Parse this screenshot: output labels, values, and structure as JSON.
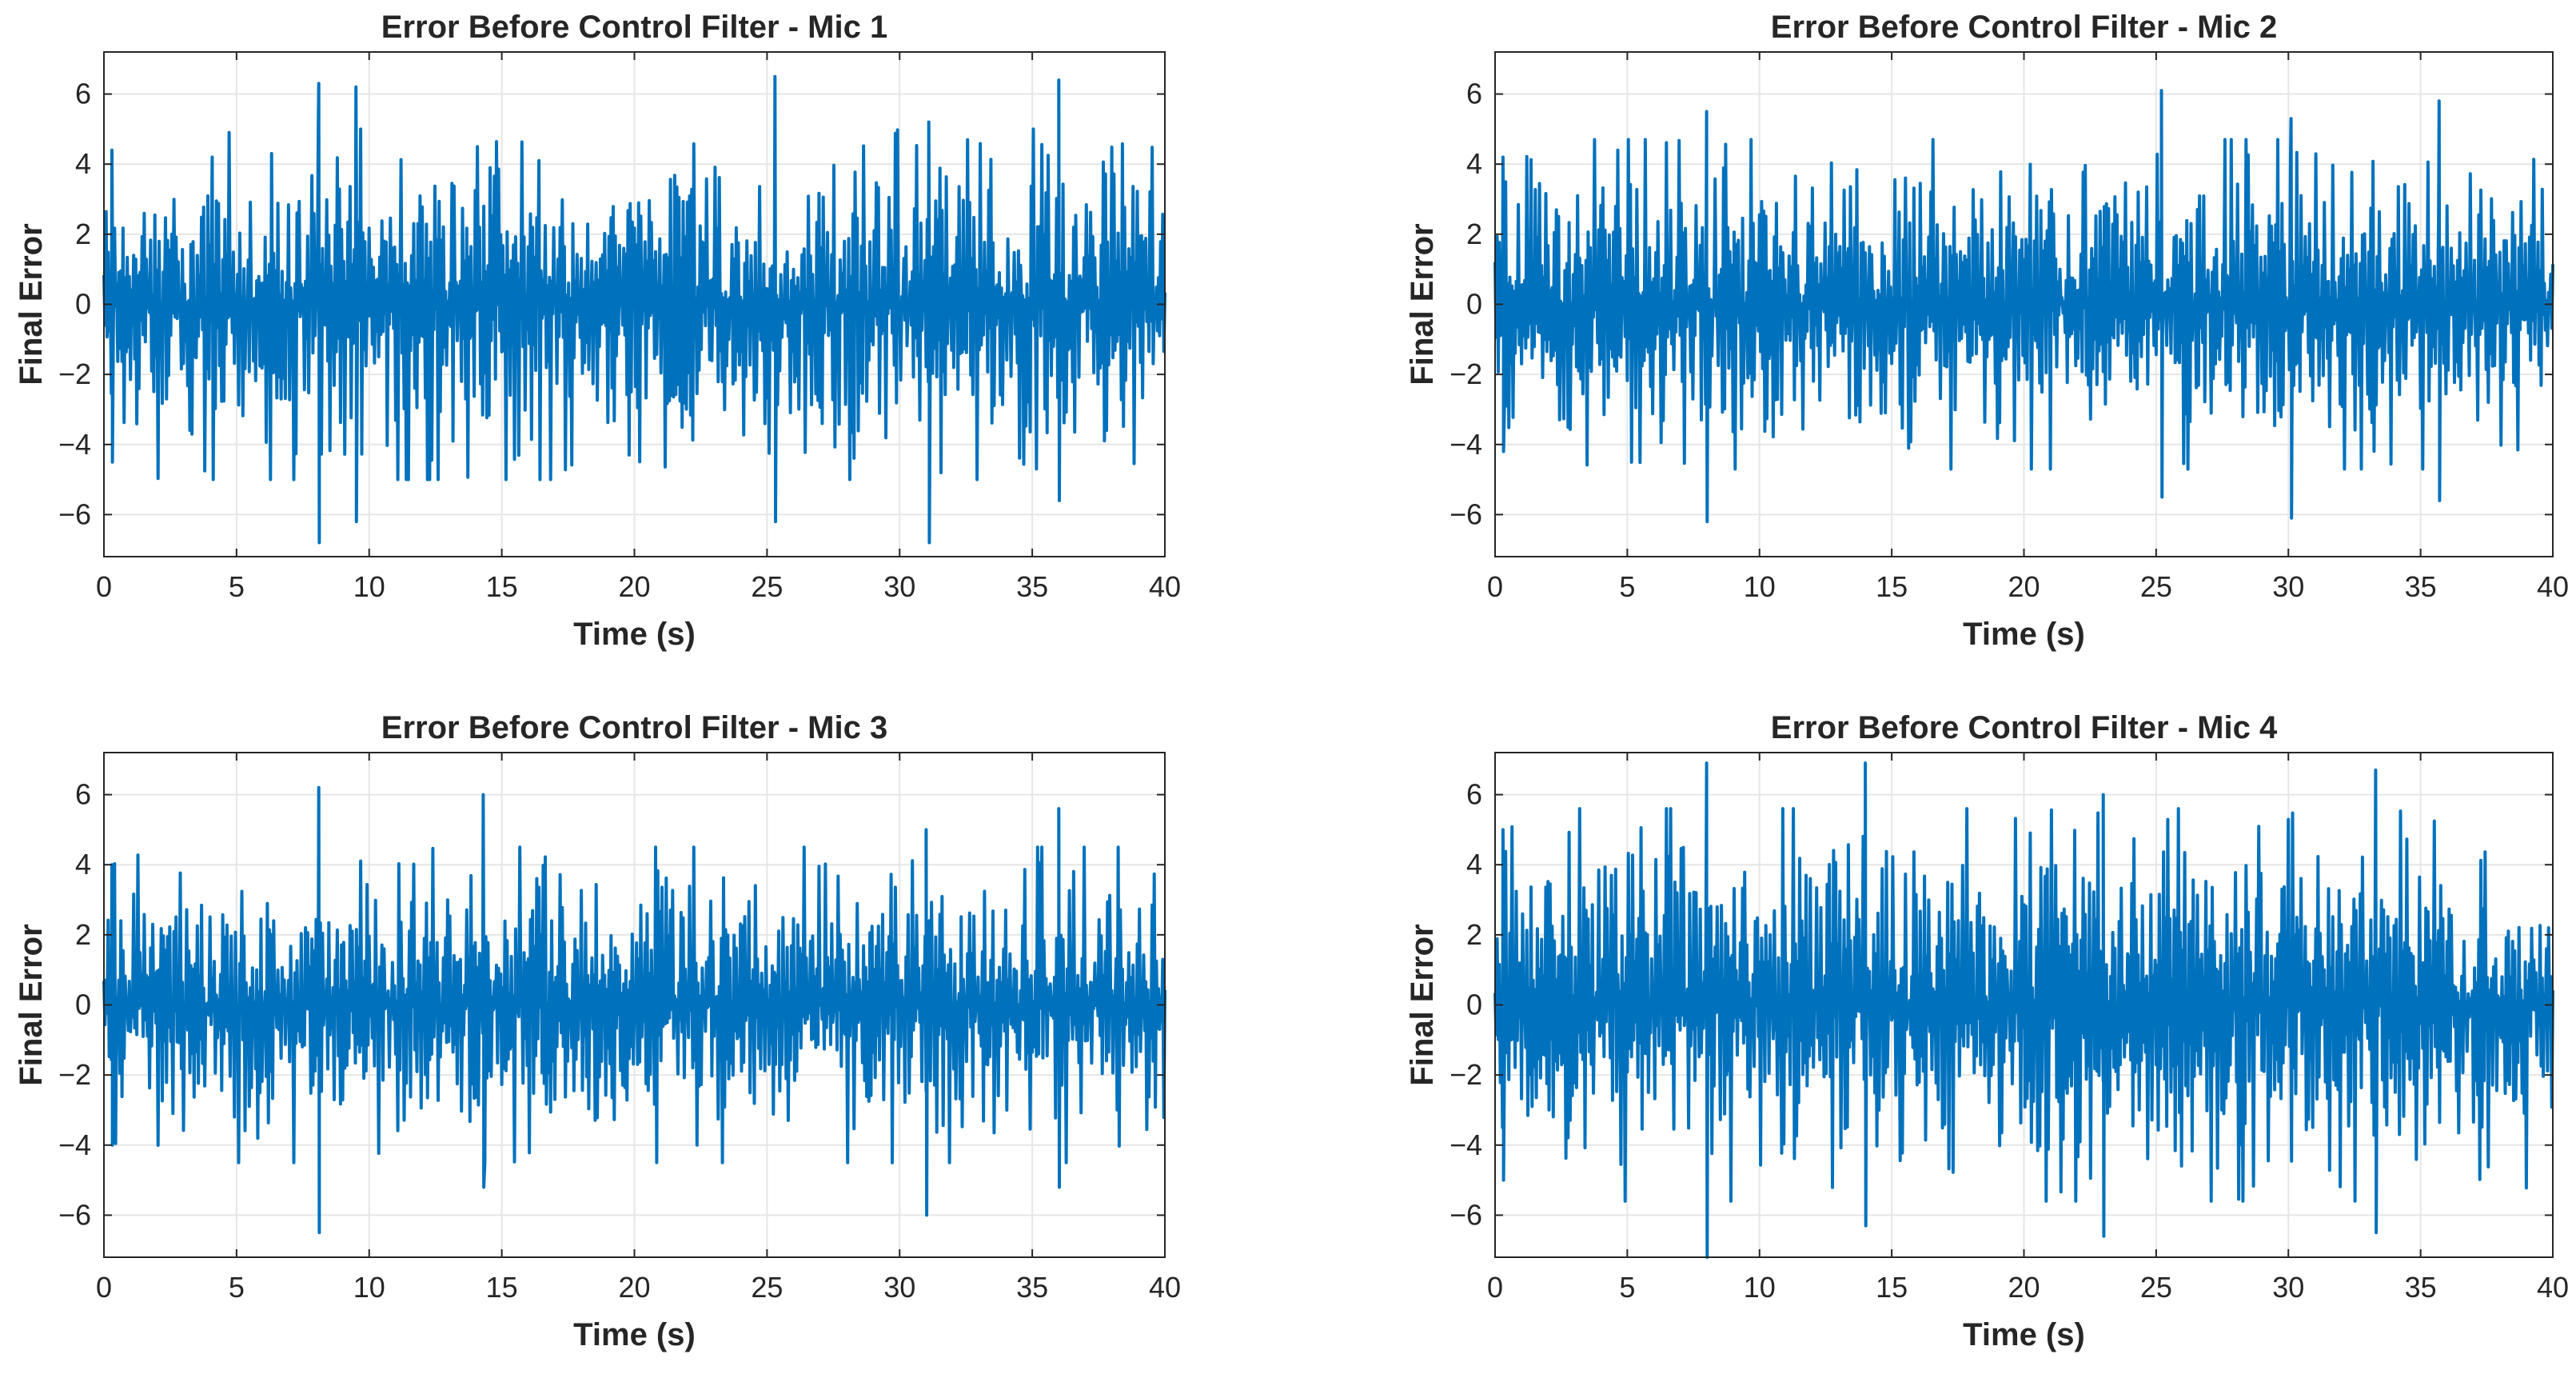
{
  "figure": {
    "background": "#ffffff",
    "line_color": "#0072bd",
    "grid_color": "#e6e6e6",
    "axes_color": "#262626"
  },
  "chart_data": [
    {
      "type": "line",
      "title": "Error Before Control Filter - Mic 1",
      "xlabel": "Time (s)",
      "ylabel": "Final Error",
      "xlim": [
        0,
        40
      ],
      "ylim": [
        -7.2,
        7.2
      ],
      "xticks": [
        0,
        5,
        10,
        15,
        20,
        25,
        30,
        35,
        40
      ],
      "yticks": [
        -6,
        -4,
        -2,
        0,
        2,
        4,
        6
      ],
      "grid": true,
      "series": [
        {
          "color": "#0072bd",
          "signal": "noise",
          "sample_interval_s": 0.04,
          "envelope": [
            {
              "x": 0,
              "lo": -3.2,
              "hi": 3.0
            },
            {
              "x": 0.3,
              "lo": -4.5,
              "hi": 4.4
            },
            {
              "x": 8.1,
              "lo": -6.8,
              "hi": 6.3
            },
            {
              "x": 9.5,
              "lo": -6.2,
              "hi": 6.2
            },
            {
              "x": 25.3,
              "lo": -6.2,
              "hi": 6.5
            },
            {
              "x": 31.1,
              "lo": -6.8,
              "hi": 5.2
            },
            {
              "x": 36.0,
              "lo": -5.6,
              "hi": 6.4
            },
            {
              "x": 40,
              "lo": -4.5,
              "hi": 4.3
            }
          ],
          "typical_range": [
            -5.0,
            5.0
          ]
        }
      ]
    },
    {
      "type": "line",
      "title": "Error Before Control Filter - Mic 2",
      "xlabel": "Time (s)",
      "ylabel": "Final Error",
      "xlim": [
        0,
        40
      ],
      "ylim": [
        -7.2,
        7.2
      ],
      "xticks": [
        0,
        5,
        10,
        15,
        20,
        25,
        30,
        35,
        40
      ],
      "yticks": [
        -6,
        -4,
        -2,
        0,
        2,
        4,
        6
      ],
      "grid": true,
      "series": [
        {
          "color": "#0072bd",
          "signal": "noise",
          "sample_interval_s": 0.04,
          "envelope": [
            {
              "x": 0,
              "lo": -3.0,
              "hi": 3.0
            },
            {
              "x": 0.3,
              "lo": -4.2,
              "hi": 4.2
            },
            {
              "x": 8.0,
              "lo": -6.2,
              "hi": 5.5
            },
            {
              "x": 25.2,
              "lo": -5.5,
              "hi": 6.1
            },
            {
              "x": 30.1,
              "lo": -6.1,
              "hi": 5.3
            },
            {
              "x": 35.7,
              "lo": -5.6,
              "hi": 5.8
            },
            {
              "x": 40,
              "lo": -4.3,
              "hi": 3.8
            }
          ],
          "typical_range": [
            -4.7,
            4.7
          ]
        }
      ]
    },
    {
      "type": "line",
      "title": "Error Before Control Filter - Mic 3",
      "xlabel": "Time (s)",
      "ylabel": "Final Error",
      "xlim": [
        0,
        40
      ],
      "ylim": [
        -7.2,
        7.2
      ],
      "xticks": [
        0,
        5,
        10,
        15,
        20,
        25,
        30,
        35,
        40
      ],
      "yticks": [
        -6,
        -4,
        -2,
        0,
        2,
        4,
        6
      ],
      "grid": true,
      "series": [
        {
          "color": "#0072bd",
          "signal": "noise",
          "sample_interval_s": 0.04,
          "envelope": [
            {
              "x": 0,
              "lo": -3.0,
              "hi": 3.0
            },
            {
              "x": 0.3,
              "lo": -4.0,
              "hi": 4.0
            },
            {
              "x": 8.1,
              "lo": -6.5,
              "hi": 6.2
            },
            {
              "x": 14.3,
              "lo": -5.2,
              "hi": 6.0
            },
            {
              "x": 31.0,
              "lo": -6.0,
              "hi": 5.0
            },
            {
              "x": 36.0,
              "lo": -5.2,
              "hi": 5.6
            },
            {
              "x": 40,
              "lo": -4.0,
              "hi": 3.8
            }
          ],
          "typical_range": [
            -4.5,
            4.5
          ]
        }
      ]
    },
    {
      "type": "line",
      "title": "Error Before Control Filter - Mic 4",
      "xlabel": "Time (s)",
      "ylabel": "Final Error",
      "xlim": [
        0,
        40
      ],
      "ylim": [
        -7.2,
        7.2
      ],
      "xticks": [
        0,
        5,
        10,
        15,
        20,
        25,
        30,
        35,
        40
      ],
      "yticks": [
        -6,
        -4,
        -2,
        0,
        2,
        4,
        6
      ],
      "grid": true,
      "series": [
        {
          "color": "#0072bd",
          "signal": "noise",
          "sample_interval_s": 0.04,
          "envelope": [
            {
              "x": 0,
              "lo": -3.5,
              "hi": 3.5
            },
            {
              "x": 0.3,
              "lo": -5.0,
              "hi": 5.0
            },
            {
              "x": 8.0,
              "lo": -7.2,
              "hi": 6.9
            },
            {
              "x": 14.0,
              "lo": -6.3,
              "hi": 6.9
            },
            {
              "x": 23.0,
              "lo": -6.6,
              "hi": 6.0
            },
            {
              "x": 33.3,
              "lo": -6.5,
              "hi": 6.7
            },
            {
              "x": 40,
              "lo": -5.0,
              "hi": 4.3
            }
          ],
          "typical_range": [
            -5.6,
            5.6
          ]
        }
      ]
    }
  ]
}
